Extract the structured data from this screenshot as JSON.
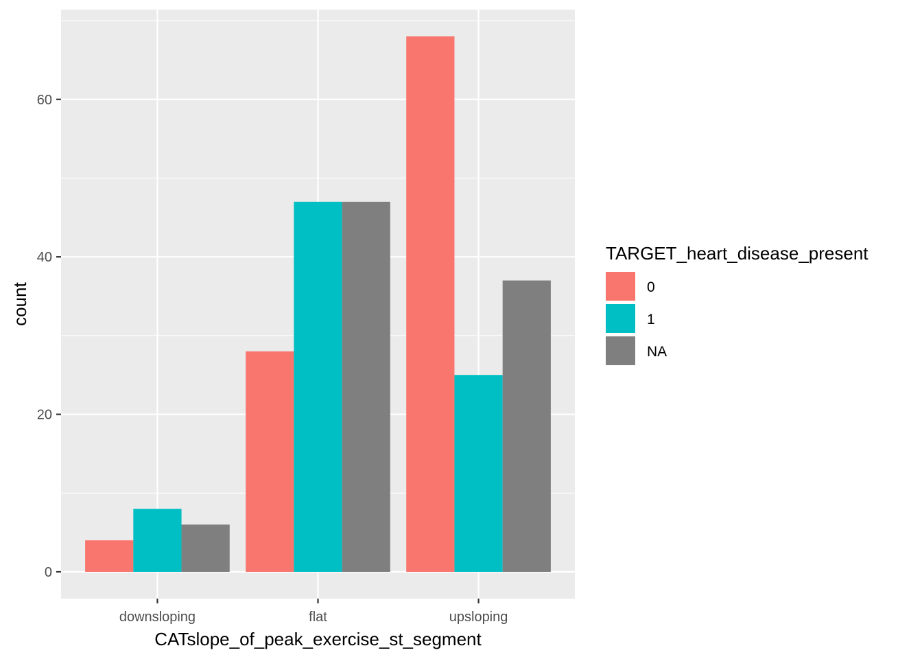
{
  "chart_data": {
    "type": "bar",
    "subtype": "grouped",
    "title": "",
    "xlabel": "CATslope_of_peak_exercise_st_segment",
    "ylabel": "count",
    "categories": [
      "downsloping",
      "flat",
      "upsloping"
    ],
    "series": [
      {
        "name": "0",
        "color": "#F8766D",
        "values": [
          4,
          28,
          68
        ]
      },
      {
        "name": "1",
        "color": "#00BFC4",
        "values": [
          8,
          47,
          25
        ]
      },
      {
        "name": "NA",
        "color": "#7F7F7F",
        "values": [
          6,
          47,
          37
        ]
      }
    ],
    "ylim": [
      -3.4,
      71.4
    ],
    "yticks": [
      0,
      20,
      40,
      60
    ],
    "ytick_labels": [
      "0",
      "20",
      "40",
      "60"
    ],
    "grid": true,
    "legend": {
      "title": "TARGET_heart_disease_present",
      "position": "right"
    }
  }
}
